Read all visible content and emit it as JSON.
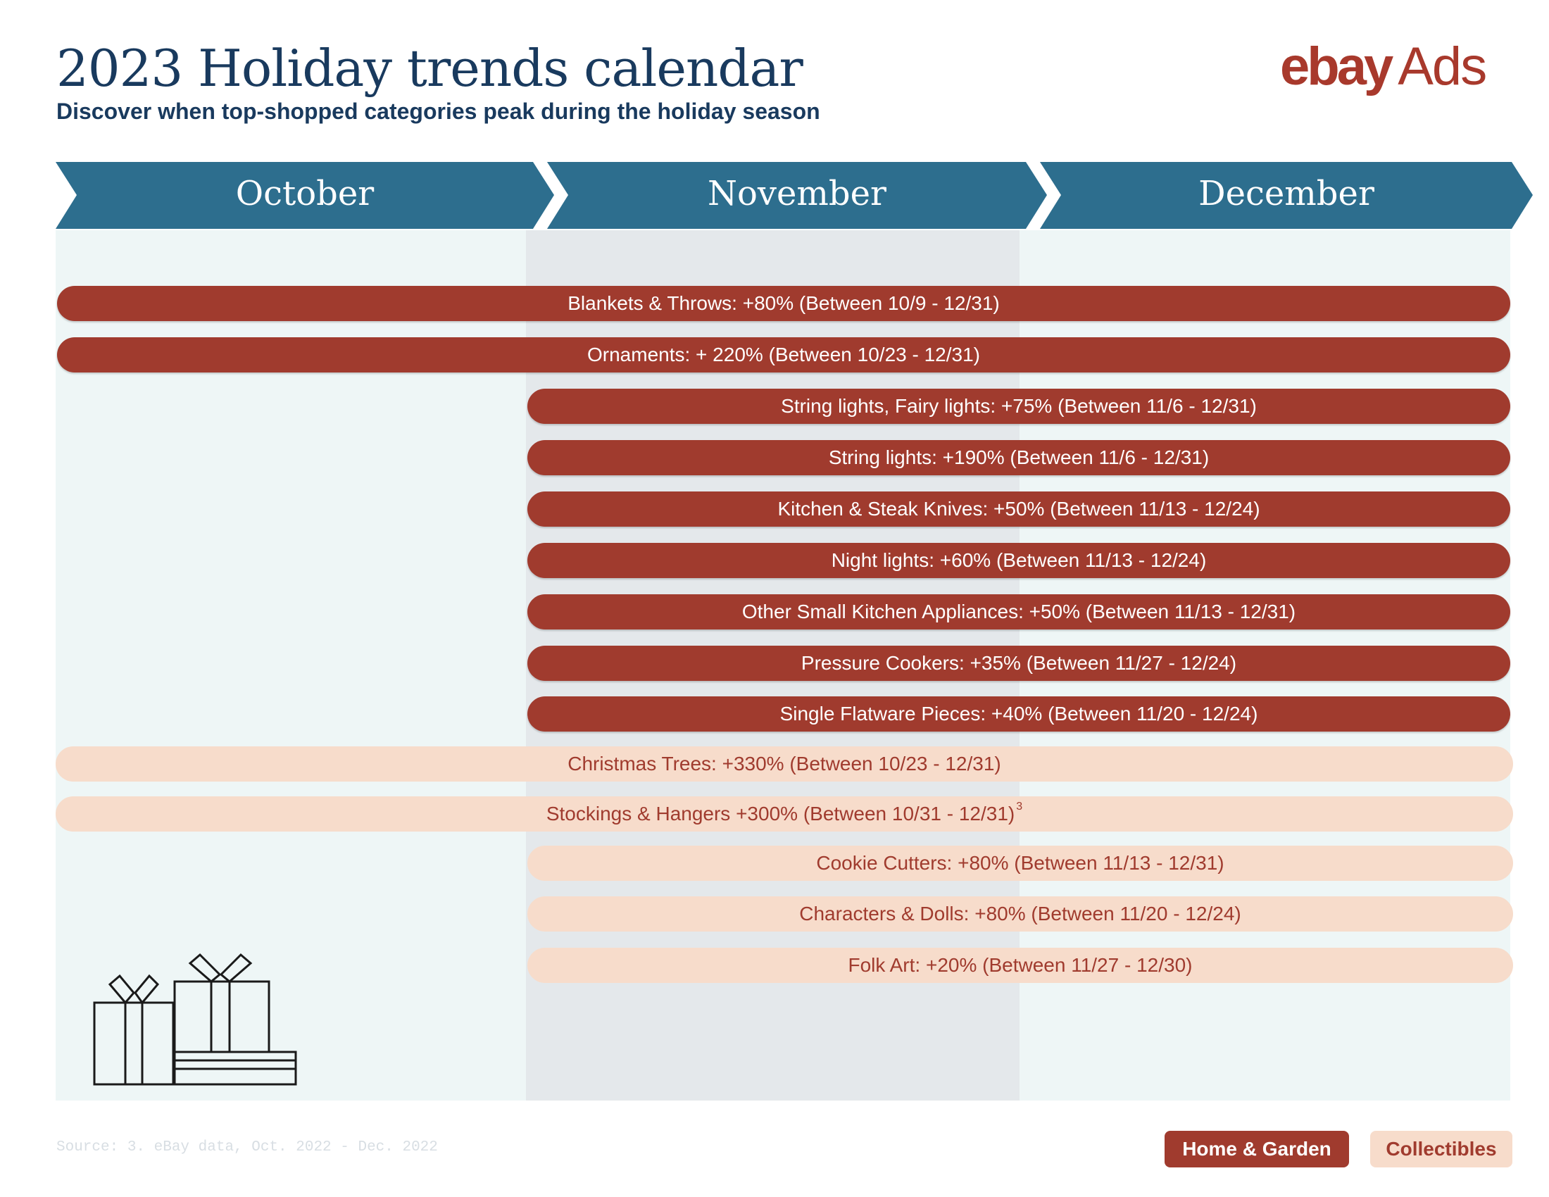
{
  "header": {
    "title": "2023 Holiday trends calendar",
    "subtitle": "Discover when top-shopped categories peak during the holiday season",
    "logo": {
      "ebay": "ebay",
      "ads": "Ads"
    }
  },
  "months": [
    "October",
    "November",
    "December"
  ],
  "colors": {
    "month_header": "#2d6e8e",
    "home_garden": "#a03b2e",
    "collectibles": "#f7dccb",
    "collectibles_text": "#a03b2e",
    "calendar_background": "#eef6f6",
    "november_background": "#e4e8eb",
    "title": "#193a5e"
  },
  "trends": [
    {
      "label": "Blankets & Throws: +80% (Between 10/9 - 12/31)",
      "category": "Home & Garden"
    },
    {
      "label": "Ornaments: + 220% (Between 10/23 - 12/31)",
      "category": "Home & Garden"
    },
    {
      "label": "String lights, Fairy lights: +75% (Between 11/6 - 12/31)",
      "category": "Home & Garden"
    },
    {
      "label": "String lights: +190% (Between 11/6 - 12/31)",
      "category": "Home & Garden"
    },
    {
      "label": "Kitchen & Steak Knives: +50% (Between 11/13 - 12/24)",
      "category": "Home & Garden"
    },
    {
      "label": "Night lights: +60% (Between 11/13 - 12/24)",
      "category": "Home & Garden"
    },
    {
      "label": "Other Small Kitchen Appliances: +50% (Between 11/13 - 12/31)",
      "category": "Home & Garden"
    },
    {
      "label": "Pressure Cookers: +35% (Between 11/27 - 12/24)",
      "category": "Home & Garden"
    },
    {
      "label": "Single Flatware Pieces: +40% (Between 11/20 - 12/24)",
      "category": "Home & Garden"
    },
    {
      "label": "Christmas Trees: +330% (Between 10/23 - 12/31)",
      "category": "Collectibles"
    },
    {
      "label": "Stockings & Hangers +300% (Between 10/31 - 12/31)",
      "footnote": "3",
      "category": "Collectibles"
    },
    {
      "label": "Cookie Cutters: +80% (Between 11/13 - 12/31)",
      "category": "Collectibles"
    },
    {
      "label": "Characters & Dolls: +80% (Between 11/20 - 12/24)",
      "category": "Collectibles"
    },
    {
      "label": "Folk Art: +20% (Between 11/27 - 12/30)",
      "category": "Collectibles"
    }
  ],
  "illustration": {
    "icon": "gift-boxes-icon"
  },
  "footer": {
    "source": "Source: 3. eBay data, Oct. 2022 - Dec. 2022",
    "legend": [
      "Home & Garden",
      "Collectibles"
    ]
  }
}
